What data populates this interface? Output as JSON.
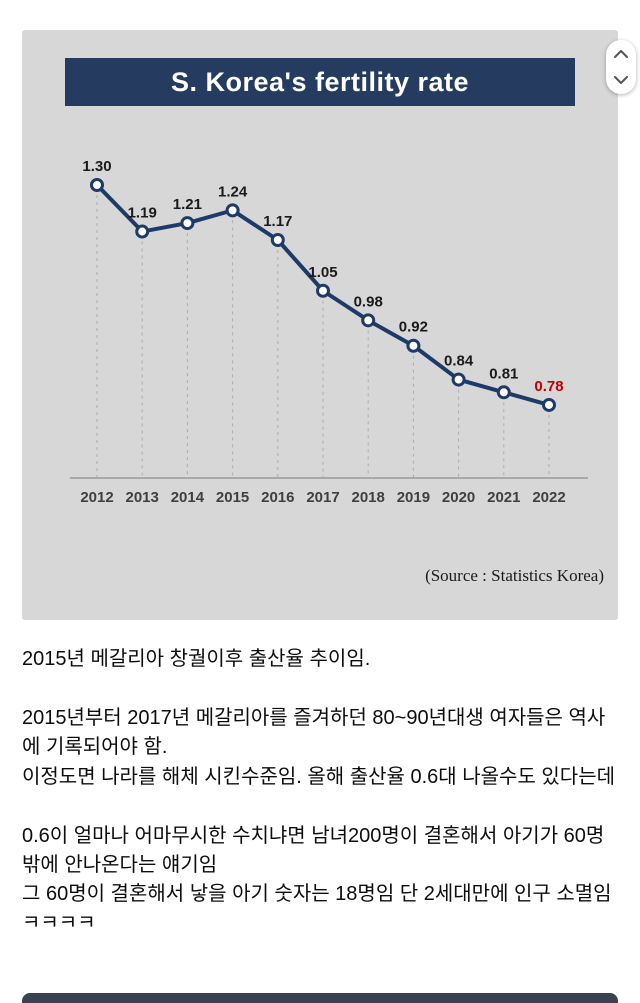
{
  "chart": {
    "title": "S. Korea's fertility rate",
    "source": "(Source : Statistics Korea)"
  },
  "chart_data": {
    "type": "line",
    "title": "S. Korea's fertility rate",
    "categories": [
      "2012",
      "2013",
      "2014",
      "2015",
      "2016",
      "2017",
      "2018",
      "2019",
      "2020",
      "2021",
      "2022"
    ],
    "values": [
      1.3,
      1.19,
      1.21,
      1.24,
      1.17,
      1.05,
      0.98,
      0.92,
      0.84,
      0.81,
      0.78
    ],
    "labels": [
      "1.30",
      "1.19",
      "1.21",
      "1.24",
      "1.17",
      "1.05",
      "0.98",
      "0.92",
      "0.84",
      "0.81",
      "0.78"
    ],
    "xlabel": "",
    "ylabel": "",
    "ylim": [
      0.7,
      1.35
    ],
    "grid": "dashed-vertical",
    "legend": "none",
    "source": "(Source : Statistics Korea)",
    "colors": {
      "line": "#1e3a68",
      "banner": "#253c60",
      "last_label": "#c00000",
      "label": "#1a1a1a",
      "panel_bg": "#d7d7d7"
    }
  },
  "post": {
    "paragraphs": [
      "2015년 메갈리아 창궐이후 출산율 추이임.",
      "2015년부터 2017년 메갈리아를 즐겨하던 80~90년대생 여자들은 역사에 기록되어야 함.",
      "이정도면 나라를 해체 시킨수준임. 올해 출산율 0.6대 나올수도 있다는데",
      "0.6이 얼마나 어마무시한 수치냐면 남녀200명이 결혼해서 아기가 60명밖에 안나온다는 얘기임",
      "그 60명이 결혼해서 낳을 아기 숫자는 18명임 단 2세대만에 인구 소멸임ㅋㅋㅋㅋ"
    ]
  }
}
